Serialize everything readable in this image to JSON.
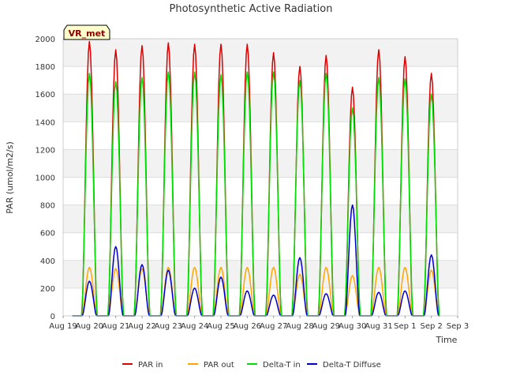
{
  "chart_data": {
    "type": "line",
    "title": "Photosynthetic Active Radiation",
    "xlabel": "Time",
    "ylabel": "PAR (umol/m2/s)",
    "ylim": [
      0,
      2000
    ],
    "yticks": [
      0,
      200,
      400,
      600,
      800,
      1000,
      1200,
      1400,
      1600,
      1800,
      2000
    ],
    "xlim": [
      0,
      15
    ],
    "xtick_labels": [
      "Aug 19",
      "Aug 20",
      "Aug 21",
      "Aug 22",
      "Aug 23",
      "Aug 24",
      "Aug 25",
      "Aug 26",
      "Aug 27",
      "Aug 28",
      "Aug 29",
      "Aug 30",
      "Aug 31",
      "Sep 1",
      "Sep 2",
      "Sep 3"
    ],
    "grid": true,
    "legend_position": "bottom",
    "station_label": "VR_met",
    "series": [
      {
        "name": "PAR in",
        "color": "#dd0000",
        "daily_peaks": [
          1980,
          1920,
          1950,
          1970,
          1960,
          1960,
          1960,
          1900,
          1800,
          1880,
          1650,
          1920,
          1870,
          1750
        ]
      },
      {
        "name": "PAR out",
        "color": "#ffa500",
        "daily_peaks": [
          350,
          340,
          340,
          350,
          350,
          350,
          350,
          350,
          300,
          350,
          290,
          350,
          350,
          330
        ]
      },
      {
        "name": "Delta-T in",
        "color": "#00dd00",
        "daily_peaks": [
          1750,
          1690,
          1720,
          1760,
          1760,
          1740,
          1760,
          1760,
          1700,
          1750,
          1500,
          1720,
          1710,
          1600
        ]
      },
      {
        "name": "Delta-T Diffuse",
        "color": "#0000cc",
        "daily_peaks": [
          250,
          500,
          370,
          330,
          200,
          280,
          180,
          150,
          420,
          160,
          800,
          170,
          180,
          440
        ]
      }
    ]
  }
}
